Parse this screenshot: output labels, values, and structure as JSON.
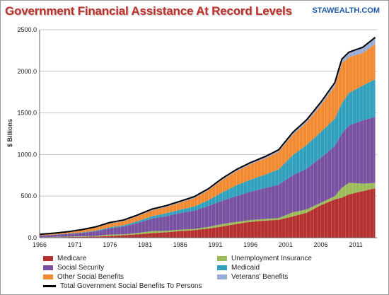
{
  "chart_data": {
    "type": "area",
    "title": "Government Financial Assistance At Record Levels",
    "watermark": "STAWEALTH.COM",
    "ylabel": "$ Billions",
    "xlabel": "",
    "ylim": [
      0,
      2500
    ],
    "yticks": [
      "0.0",
      "500.0",
      "1000.0",
      "1500.0",
      "2000.0",
      "2500.0"
    ],
    "xticks": [
      "1966",
      "1971",
      "1976",
      "1981",
      "1986",
      "1991",
      "1996",
      "2001",
      "2006",
      "2011"
    ],
    "grid": true,
    "legend_position": "bottom",
    "stacked": true,
    "x": [
      1966,
      1968,
      1970,
      1972,
      1974,
      1976,
      1978,
      1980,
      1982,
      1984,
      1986,
      1988,
      1990,
      1992,
      1994,
      1996,
      1998,
      2000,
      2002,
      2004,
      2006,
      2008,
      2009,
      2010,
      2012,
      2014
    ],
    "series": [
      {
        "name": "Medicare",
        "color": "#b5302f",
        "values": [
          2,
          6,
          8,
          10,
          14,
          20,
          30,
          40,
          55,
          65,
          80,
          90,
          110,
          135,
          165,
          190,
          205,
          215,
          255,
          300,
          390,
          460,
          480,
          520,
          560,
          600
        ]
      },
      {
        "name": "Unemployment Insurance",
        "color": "#9bbb59",
        "values": [
          3,
          3,
          5,
          7,
          8,
          18,
          10,
          18,
          25,
          18,
          17,
          15,
          20,
          30,
          25,
          22,
          20,
          21,
          50,
          40,
          30,
          40,
          120,
          140,
          90,
          60
        ]
      },
      {
        "name": "Social Security",
        "color": "#7851a1",
        "values": [
          20,
          25,
          32,
          40,
          55,
          75,
          95,
          120,
          150,
          175,
          200,
          220,
          250,
          280,
          310,
          340,
          370,
          400,
          445,
          490,
          540,
          600,
          650,
          690,
          760,
          800
        ]
      },
      {
        "name": "Medicaid",
        "color": "#31a0bc",
        "values": [
          1,
          2,
          4,
          6,
          8,
          12,
          15,
          22,
          28,
          35,
          40,
          50,
          70,
          100,
          130,
          145,
          160,
          185,
          240,
          285,
          310,
          330,
          365,
          390,
          420,
          455
        ]
      },
      {
        "name": "Other Social Benefits",
        "color": "#f28a32",
        "values": [
          10,
          12,
          16,
          25,
          35,
          45,
          50,
          60,
          70,
          75,
          85,
          100,
          120,
          150,
          170,
          185,
          195,
          210,
          245,
          270,
          320,
          390,
          480,
          430,
          390,
          430
        ]
      },
      {
        "name": "Veterans' Benefits",
        "color": "#97acd8",
        "values": [
          5,
          6,
          7,
          9,
          11,
          13,
          14,
          15,
          16,
          17,
          17,
          18,
          18,
          19,
          20,
          21,
          22,
          25,
          29,
          33,
          37,
          45,
          52,
          60,
          70,
          80
        ]
      }
    ],
    "total_line": {
      "name": "Total Government Social Benefits To Persons",
      "color": "#000000"
    }
  },
  "legend": [
    {
      "label": "Medicare",
      "color": "#b5302f"
    },
    {
      "label": "Unemployment Insurance",
      "color": "#9bbb59"
    },
    {
      "label": "Social Security",
      "color": "#7851a1"
    },
    {
      "label": "Medicaid",
      "color": "#31a0bc"
    },
    {
      "label": "Other Social Benefits",
      "color": "#f28a32"
    },
    {
      "label": "Veterans' Benefits",
      "color": "#97acd8"
    },
    {
      "label": "Total Government Social Benefits To Persons",
      "color": "#000000"
    }
  ]
}
